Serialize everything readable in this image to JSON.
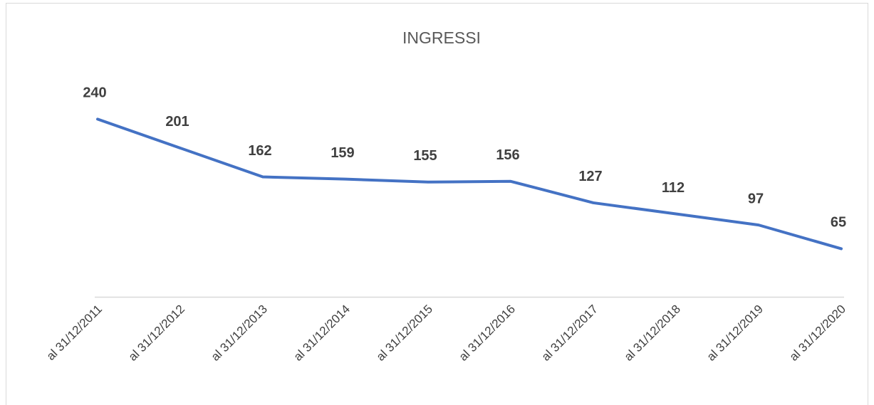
{
  "chart_data": {
    "type": "line",
    "title": "INGRESSI",
    "categories": [
      "al 31/12/2011",
      "al 31/12/2012",
      "al 31/12/2013",
      "al 31/12/2014",
      "al 31/12/2015",
      "al 31/12/2016",
      "al 31/12/2017",
      "al 31/12/2018",
      "al 31/12/2019",
      "al 31/12/2020"
    ],
    "values": [
      240,
      201,
      162,
      159,
      155,
      156,
      127,
      112,
      97,
      65
    ],
    "color": "#4472c4",
    "ylim": [
      0,
      300
    ]
  }
}
